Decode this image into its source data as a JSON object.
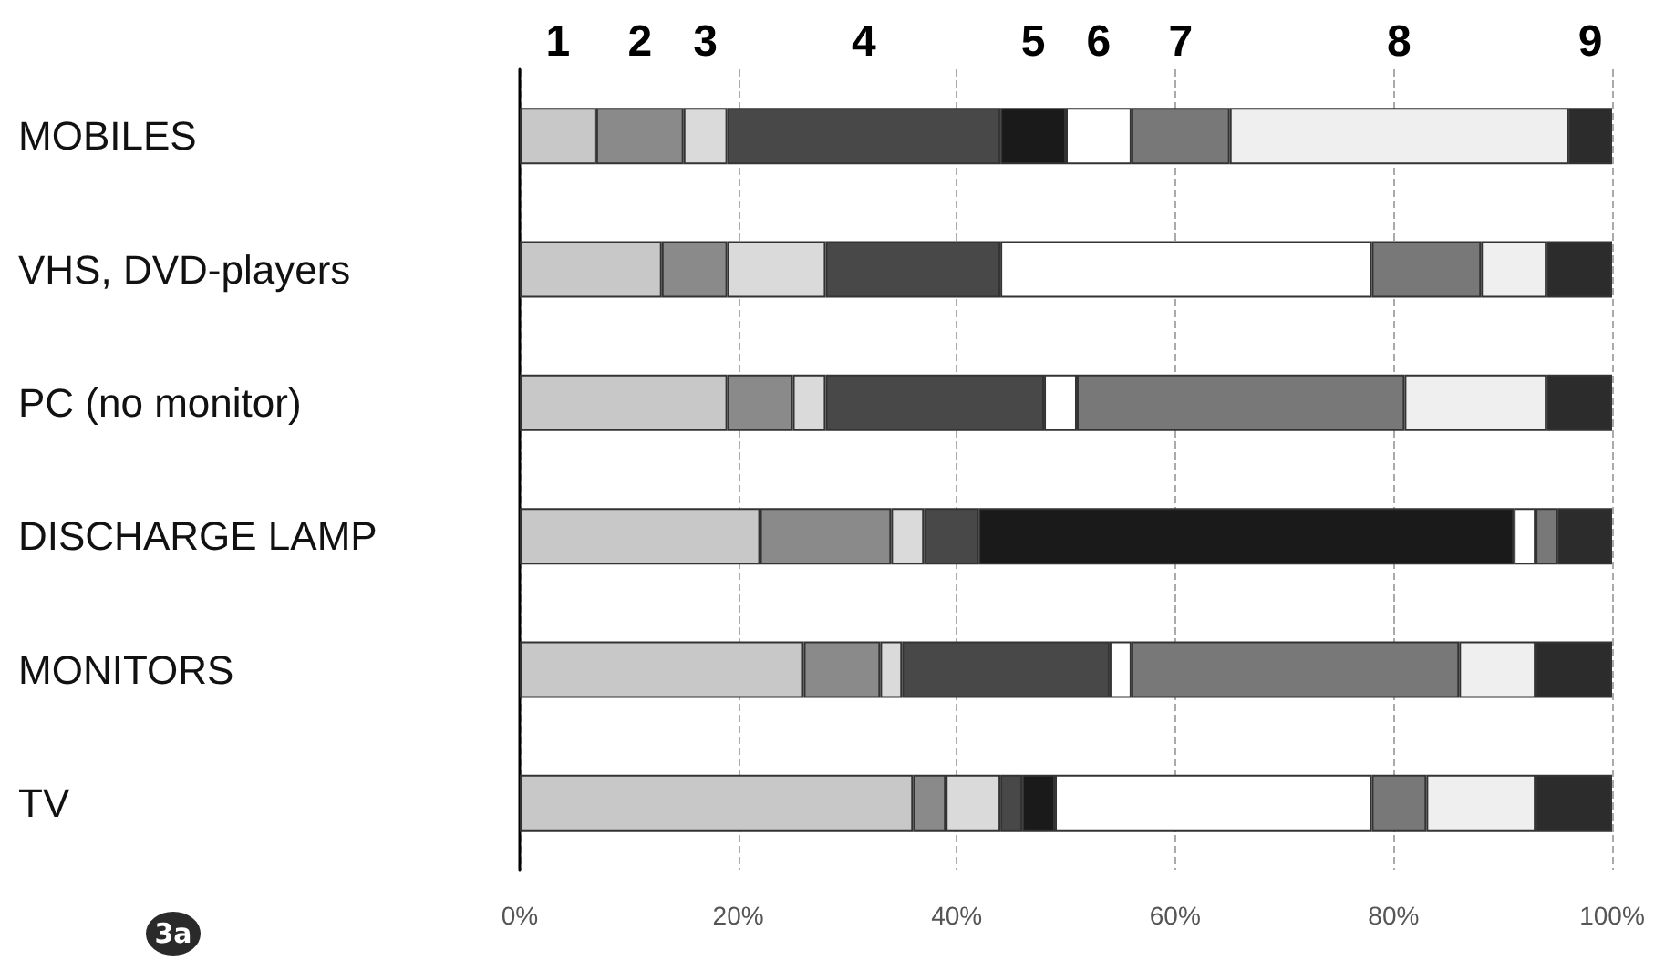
{
  "chart_data": {
    "type": "bar",
    "orientation": "horizontal",
    "stacked": true,
    "categories": [
      "MOBILES",
      "VHS, DVD-players",
      "PC (no monitor)",
      "DISCHARGE LAMP",
      "MONITORS",
      "TV"
    ],
    "series": [
      {
        "name": "1",
        "color": "#c8c8c8",
        "values": [
          7,
          13,
          19,
          22,
          26,
          36
        ]
      },
      {
        "name": "2",
        "color": "#8a8a8a",
        "values": [
          8,
          6,
          6,
          12,
          7,
          3
        ]
      },
      {
        "name": "3",
        "color": "#dadada",
        "values": [
          4,
          9,
          3,
          3,
          2,
          5
        ]
      },
      {
        "name": "4",
        "color": "#484848",
        "values": [
          25,
          16,
          20,
          5,
          19,
          2
        ]
      },
      {
        "name": "5",
        "color": "#1a1a1a",
        "values": [
          6,
          null,
          null,
          49,
          null,
          3
        ]
      },
      {
        "name": "6",
        "color": "#ffffff",
        "values": [
          6,
          34,
          3,
          2,
          2,
          29
        ]
      },
      {
        "name": "7",
        "color": "#787878",
        "values": [
          9,
          10,
          30,
          2,
          30,
          5
        ]
      },
      {
        "name": "8",
        "color": "#efefef",
        "values": [
          31,
          6,
          13,
          null,
          7,
          10
        ]
      },
      {
        "name": "9",
        "color": "#2c2c2c",
        "values": [
          4,
          6,
          6,
          5,
          7,
          7
        ]
      }
    ],
    "xlim": [
      0,
      100
    ],
    "xticks": [
      {
        "value": 0,
        "label": "0%"
      },
      {
        "value": 20,
        "label": "20%"
      },
      {
        "value": 40,
        "label": "40%"
      },
      {
        "value": 60,
        "label": "60%"
      },
      {
        "value": 80,
        "label": "80%"
      },
      {
        "value": 100,
        "label": "100%"
      }
    ],
    "grid": "x",
    "annotations": [
      "3a"
    ]
  }
}
